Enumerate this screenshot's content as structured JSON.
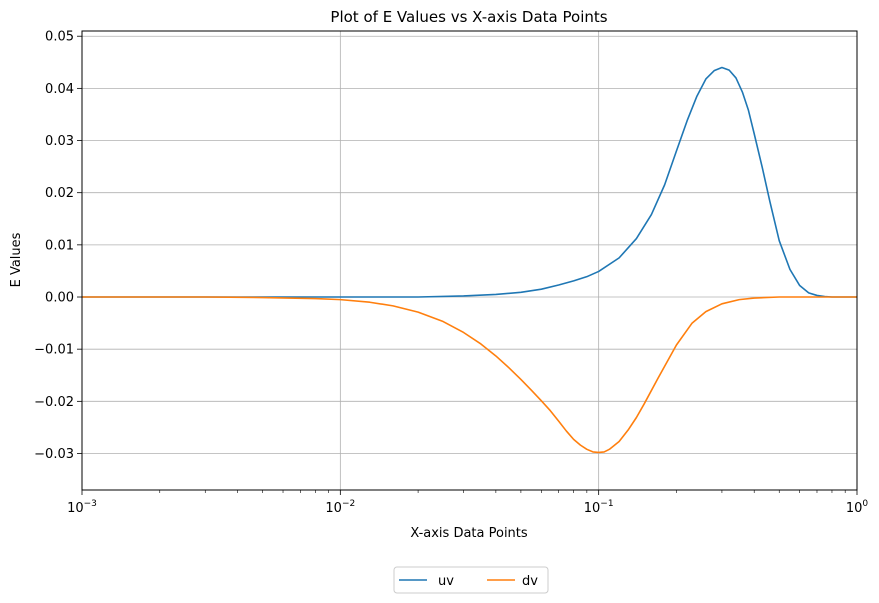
{
  "chart_data": {
    "type": "line",
    "title": "Plot of E Values vs X-axis Data Points",
    "xlabel": "X-axis Data Points",
    "ylabel": "E Values",
    "xscale": "log",
    "xlim": [
      0.001,
      1.0
    ],
    "ylim": [
      -0.037,
      0.051
    ],
    "grid": true,
    "legend_position": "bottom-center",
    "x_ticks": [
      {
        "value": 0.001,
        "base": "10",
        "exp": "−3"
      },
      {
        "value": 0.01,
        "base": "10",
        "exp": "−2"
      },
      {
        "value": 0.1,
        "base": "10",
        "exp": "−1"
      },
      {
        "value": 1.0,
        "base": "10",
        "exp": "0"
      }
    ],
    "y_ticks": [
      {
        "value": -0.03,
        "label": "−0.03"
      },
      {
        "value": -0.02,
        "label": "−0.02"
      },
      {
        "value": -0.01,
        "label": "−0.01"
      },
      {
        "value": 0.0,
        "label": "0.00"
      },
      {
        "value": 0.01,
        "label": "0.01"
      },
      {
        "value": 0.02,
        "label": "0.02"
      },
      {
        "value": 0.03,
        "label": "0.03"
      },
      {
        "value": 0.04,
        "label": "0.04"
      },
      {
        "value": 0.05,
        "label": "0.05"
      }
    ],
    "series": [
      {
        "name": "uv",
        "color": "#1f77b4",
        "x": [
          0.001,
          0.01,
          0.02,
          0.03,
          0.04,
          0.05,
          0.06,
          0.07,
          0.08,
          0.09,
          0.1,
          0.12,
          0.14,
          0.16,
          0.18,
          0.2,
          0.22,
          0.24,
          0.26,
          0.28,
          0.3,
          0.32,
          0.34,
          0.36,
          0.38,
          0.4,
          0.43,
          0.46,
          0.5,
          0.55,
          0.6,
          0.65,
          0.7,
          0.75,
          0.8,
          0.85,
          0.9,
          1.0
        ],
        "y": [
          0.0,
          0.0,
          0.0,
          0.0002,
          0.0005,
          0.0009,
          0.0015,
          0.0023,
          0.0031,
          0.0039,
          0.0049,
          0.0075,
          0.0112,
          0.0158,
          0.0215,
          0.028,
          0.0338,
          0.0385,
          0.0418,
          0.0434,
          0.044,
          0.0435,
          0.042,
          0.0393,
          0.0358,
          0.0313,
          0.0248,
          0.0183,
          0.0108,
          0.0053,
          0.0022,
          0.0008,
          0.0003,
          0.0001,
          0.0,
          0.0,
          0.0,
          0.0
        ]
      },
      {
        "name": "dv",
        "color": "#ff7f0e",
        "x": [
          0.001,
          0.003,
          0.005,
          0.008,
          0.01,
          0.013,
          0.016,
          0.02,
          0.025,
          0.03,
          0.035,
          0.04,
          0.045,
          0.05,
          0.055,
          0.06,
          0.065,
          0.07,
          0.075,
          0.08,
          0.085,
          0.09,
          0.095,
          0.1,
          0.105,
          0.11,
          0.12,
          0.13,
          0.14,
          0.15,
          0.17,
          0.2,
          0.23,
          0.26,
          0.3,
          0.35,
          0.4,
          0.5,
          0.6,
          0.7,
          0.8,
          1.0
        ],
        "y": [
          0.0,
          0.0,
          -0.0001,
          -0.0003,
          -0.0005,
          -0.001,
          -0.0017,
          -0.0029,
          -0.0047,
          -0.0068,
          -0.009,
          -0.0113,
          -0.0136,
          -0.0158,
          -0.0179,
          -0.0199,
          -0.0218,
          -0.0238,
          -0.0257,
          -0.0273,
          -0.0284,
          -0.0292,
          -0.0297,
          -0.0298,
          -0.0297,
          -0.0292,
          -0.0277,
          -0.0255,
          -0.0231,
          -0.0205,
          -0.0155,
          -0.0092,
          -0.005,
          -0.0028,
          -0.0013,
          -0.0005,
          -0.0002,
          0.0,
          0.0,
          0.0,
          0.0,
          0.0
        ]
      }
    ]
  }
}
